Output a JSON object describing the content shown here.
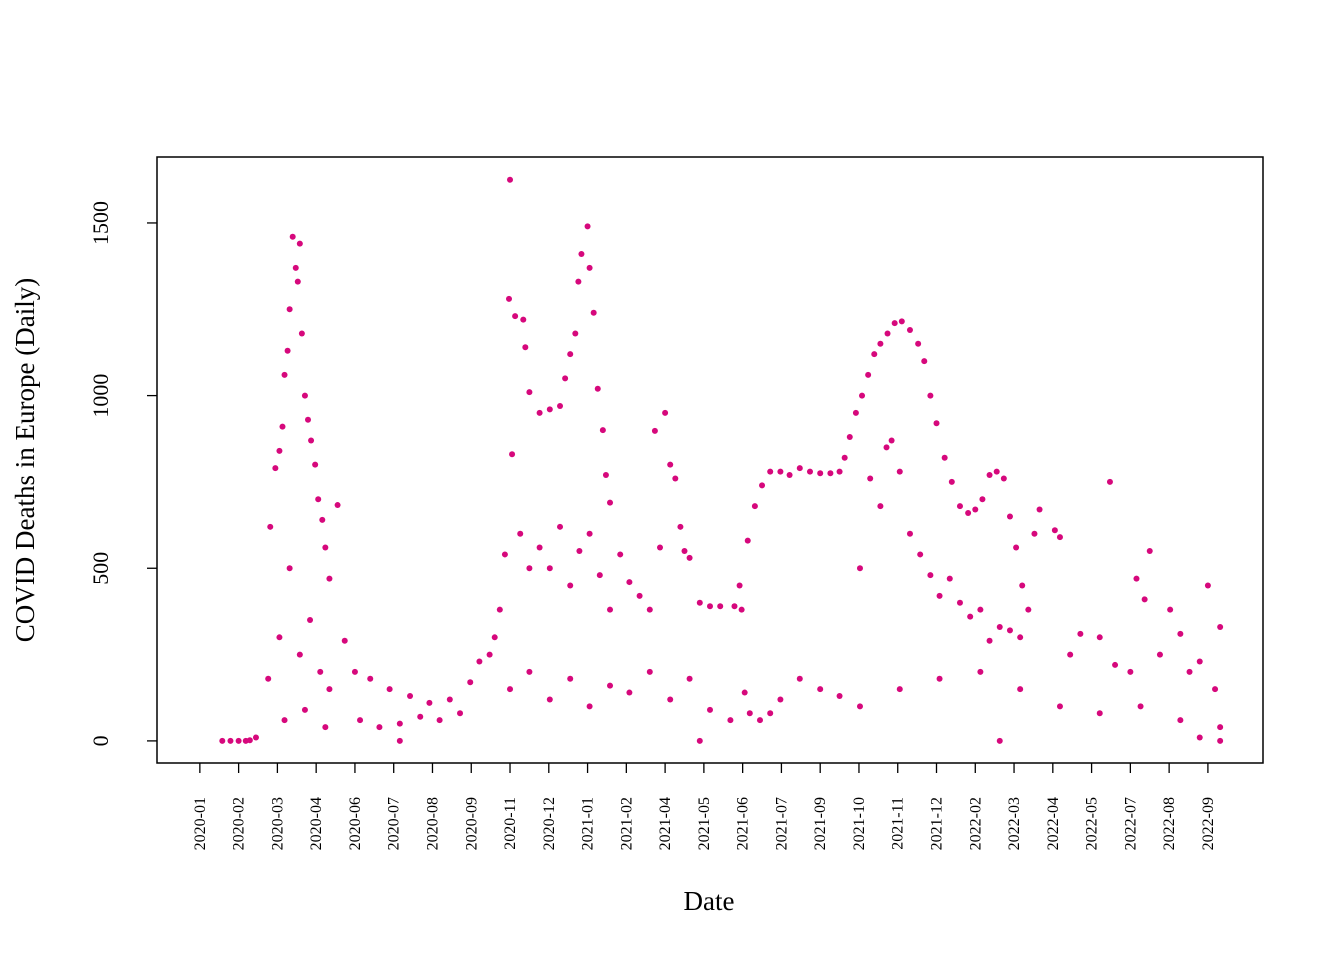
{
  "chart_data": {
    "type": "scatter",
    "xlabel": "Date",
    "ylabel": "COVID Deaths in Europe (Daily)",
    "color": "#d6087c",
    "xlim": [
      -42,
      1042
    ],
    "ylim": [
      -64,
      1691
    ],
    "yticks": [
      0,
      500,
      1000,
      1500
    ],
    "xticks": [
      {
        "value": 0,
        "label": "2020-01"
      },
      {
        "value": 38,
        "label": "2020-02"
      },
      {
        "value": 76,
        "label": "2020-03"
      },
      {
        "value": 114,
        "label": "2020-04"
      },
      {
        "value": 152,
        "label": "2020-06"
      },
      {
        "value": 190,
        "label": "2020-07"
      },
      {
        "value": 228,
        "label": "2020-08"
      },
      {
        "value": 266,
        "label": "2020-09"
      },
      {
        "value": 304,
        "label": "2020-11"
      },
      {
        "value": 342,
        "label": "2020-12"
      },
      {
        "value": 380,
        "label": "2021-01"
      },
      {
        "value": 418,
        "label": "2021-02"
      },
      {
        "value": 456,
        "label": "2021-04"
      },
      {
        "value": 494,
        "label": "2021-05"
      },
      {
        "value": 532,
        "label": "2021-06"
      },
      {
        "value": 570,
        "label": "2021-07"
      },
      {
        "value": 608,
        "label": "2021-09"
      },
      {
        "value": 646,
        "label": "2021-10"
      },
      {
        "value": 684,
        "label": "2021-11"
      },
      {
        "value": 722,
        "label": "2021-12"
      },
      {
        "value": 760,
        "label": "2022-02"
      },
      {
        "value": 798,
        "label": "2022-03"
      },
      {
        "value": 836,
        "label": "2022-04"
      },
      {
        "value": 874,
        "label": "2022-05"
      },
      {
        "value": 912,
        "label": "2022-07"
      },
      {
        "value": 950,
        "label": "2022-08"
      },
      {
        "value": 988,
        "label": "2022-09"
      }
    ],
    "x": [
      22,
      30,
      38,
      45,
      49,
      55,
      67,
      69,
      74,
      78,
      81,
      83,
      86,
      88,
      91,
      94,
      96,
      98,
      100,
      103,
      106,
      109,
      113,
      116,
      120,
      123,
      127,
      135,
      78,
      88,
      98,
      108,
      118,
      127,
      83,
      103,
      123,
      142,
      152,
      167,
      186,
      206,
      225,
      245,
      265,
      274,
      284,
      289,
      157,
      176,
      196,
      216,
      235,
      255,
      294,
      299,
      303,
      304,
      306,
      309,
      317,
      319,
      323,
      333,
      343,
      353,
      358,
      363,
      368,
      371,
      374,
      380,
      382,
      386,
      390,
      395,
      398,
      402,
      314,
      323,
      333,
      343,
      353,
      363,
      372,
      382,
      392,
      402,
      412,
      421,
      431,
      441,
      446,
      451,
      456,
      461,
      466,
      471,
      475,
      480,
      490,
      500,
      510,
      524,
      529,
      304,
      323,
      343,
      363,
      382,
      402,
      421,
      441,
      461,
      480,
      500,
      520,
      534,
      539,
      549,
      559,
      569,
      588,
      608,
      627,
      531,
      537,
      544,
      551,
      559,
      569,
      578,
      588,
      598,
      608,
      618,
      627,
      632,
      637,
      643,
      649,
      655,
      661,
      667,
      674,
      681,
      688,
      696,
      704,
      710,
      716,
      722,
      730,
      737,
      745,
      753,
      760,
      767,
      774,
      781,
      788,
      794,
      800,
      806,
      812,
      647,
      657,
      667,
      673,
      678,
      686,
      696,
      706,
      716,
      725,
      735,
      745,
      755,
      765,
      774,
      784,
      794,
      804,
      818,
      823,
      838,
      843,
      853,
      863,
      882,
      892,
      897,
      912,
      918,
      926,
      931,
      941,
      951,
      961,
      970,
      980,
      988,
      995,
      1000,
      647,
      686,
      725,
      765,
      804,
      843,
      882,
      922,
      961,
      1000,
      1000,
      980,
      784,
      490,
      196
    ],
    "values": [
      0,
      0,
      0,
      0,
      2,
      10,
      180,
      620,
      790,
      840,
      910,
      1060,
      1130,
      1250,
      1460,
      1370,
      1330,
      1440,
      1180,
      1000,
      930,
      870,
      800,
      700,
      640,
      560,
      470,
      683,
      300,
      500,
      250,
      350,
      200,
      150,
      60,
      90,
      40,
      290,
      200,
      180,
      150,
      130,
      110,
      120,
      170,
      230,
      250,
      300,
      60,
      40,
      50,
      70,
      60,
      80,
      380,
      540,
      1280,
      1625,
      830,
      1230,
      1220,
      1140,
      1010,
      950,
      960,
      970,
      1050,
      1120,
      1180,
      1330,
      1410,
      1490,
      1370,
      1240,
      1020,
      900,
      770,
      690,
      600,
      500,
      560,
      500,
      620,
      450,
      550,
      600,
      480,
      380,
      540,
      460,
      420,
      380,
      898,
      560,
      950,
      800,
      760,
      620,
      550,
      530,
      400,
      390,
      390,
      390,
      450,
      150,
      200,
      120,
      180,
      100,
      160,
      140,
      200,
      120,
      180,
      90,
      60,
      140,
      80,
      60,
      80,
      120,
      180,
      150,
      130,
      380,
      580,
      680,
      740,
      780,
      780,
      770,
      790,
      780,
      775,
      775,
      780,
      820,
      880,
      950,
      1000,
      1060,
      1120,
      1150,
      1180,
      1210,
      1215,
      1190,
      1150,
      1100,
      1000,
      920,
      820,
      750,
      680,
      660,
      670,
      700,
      770,
      780,
      760,
      650,
      560,
      450,
      380,
      500,
      760,
      680,
      850,
      870,
      780,
      600,
      540,
      480,
      420,
      470,
      400,
      360,
      380,
      290,
      330,
      320,
      300,
      600,
      670,
      610,
      590,
      250,
      310,
      300,
      750,
      220,
      200,
      470,
      410,
      550,
      250,
      380,
      310,
      200,
      230,
      450,
      150,
      330,
      100,
      150,
      180,
      200,
      150,
      100,
      80,
      100,
      60,
      40,
      0,
      10,
      0,
      0,
      0
    ]
  }
}
